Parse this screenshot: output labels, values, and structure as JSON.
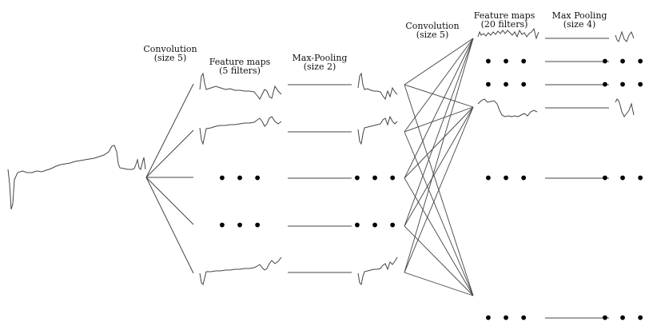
{
  "labels": {
    "conv1_title": "Convolution",
    "conv1_size": "(size 5)",
    "fmaps1_title": "Feature maps",
    "fmaps1_count": "(5 filters)",
    "pool1_title": "Max-Pooling",
    "pool1_size": "(size 2)",
    "conv2_title": "Convolution",
    "conv2_size": "(size 5)",
    "fmaps2_title": "Feature maps",
    "fmaps2_count": "(20 filters)",
    "pool2_title": "Max Pooling",
    "pool2_size": "(size 4)"
  },
  "ellipsis": "• • •",
  "colors": {
    "line": "#444444",
    "signal": "#444444",
    "dots": "#000000"
  }
}
